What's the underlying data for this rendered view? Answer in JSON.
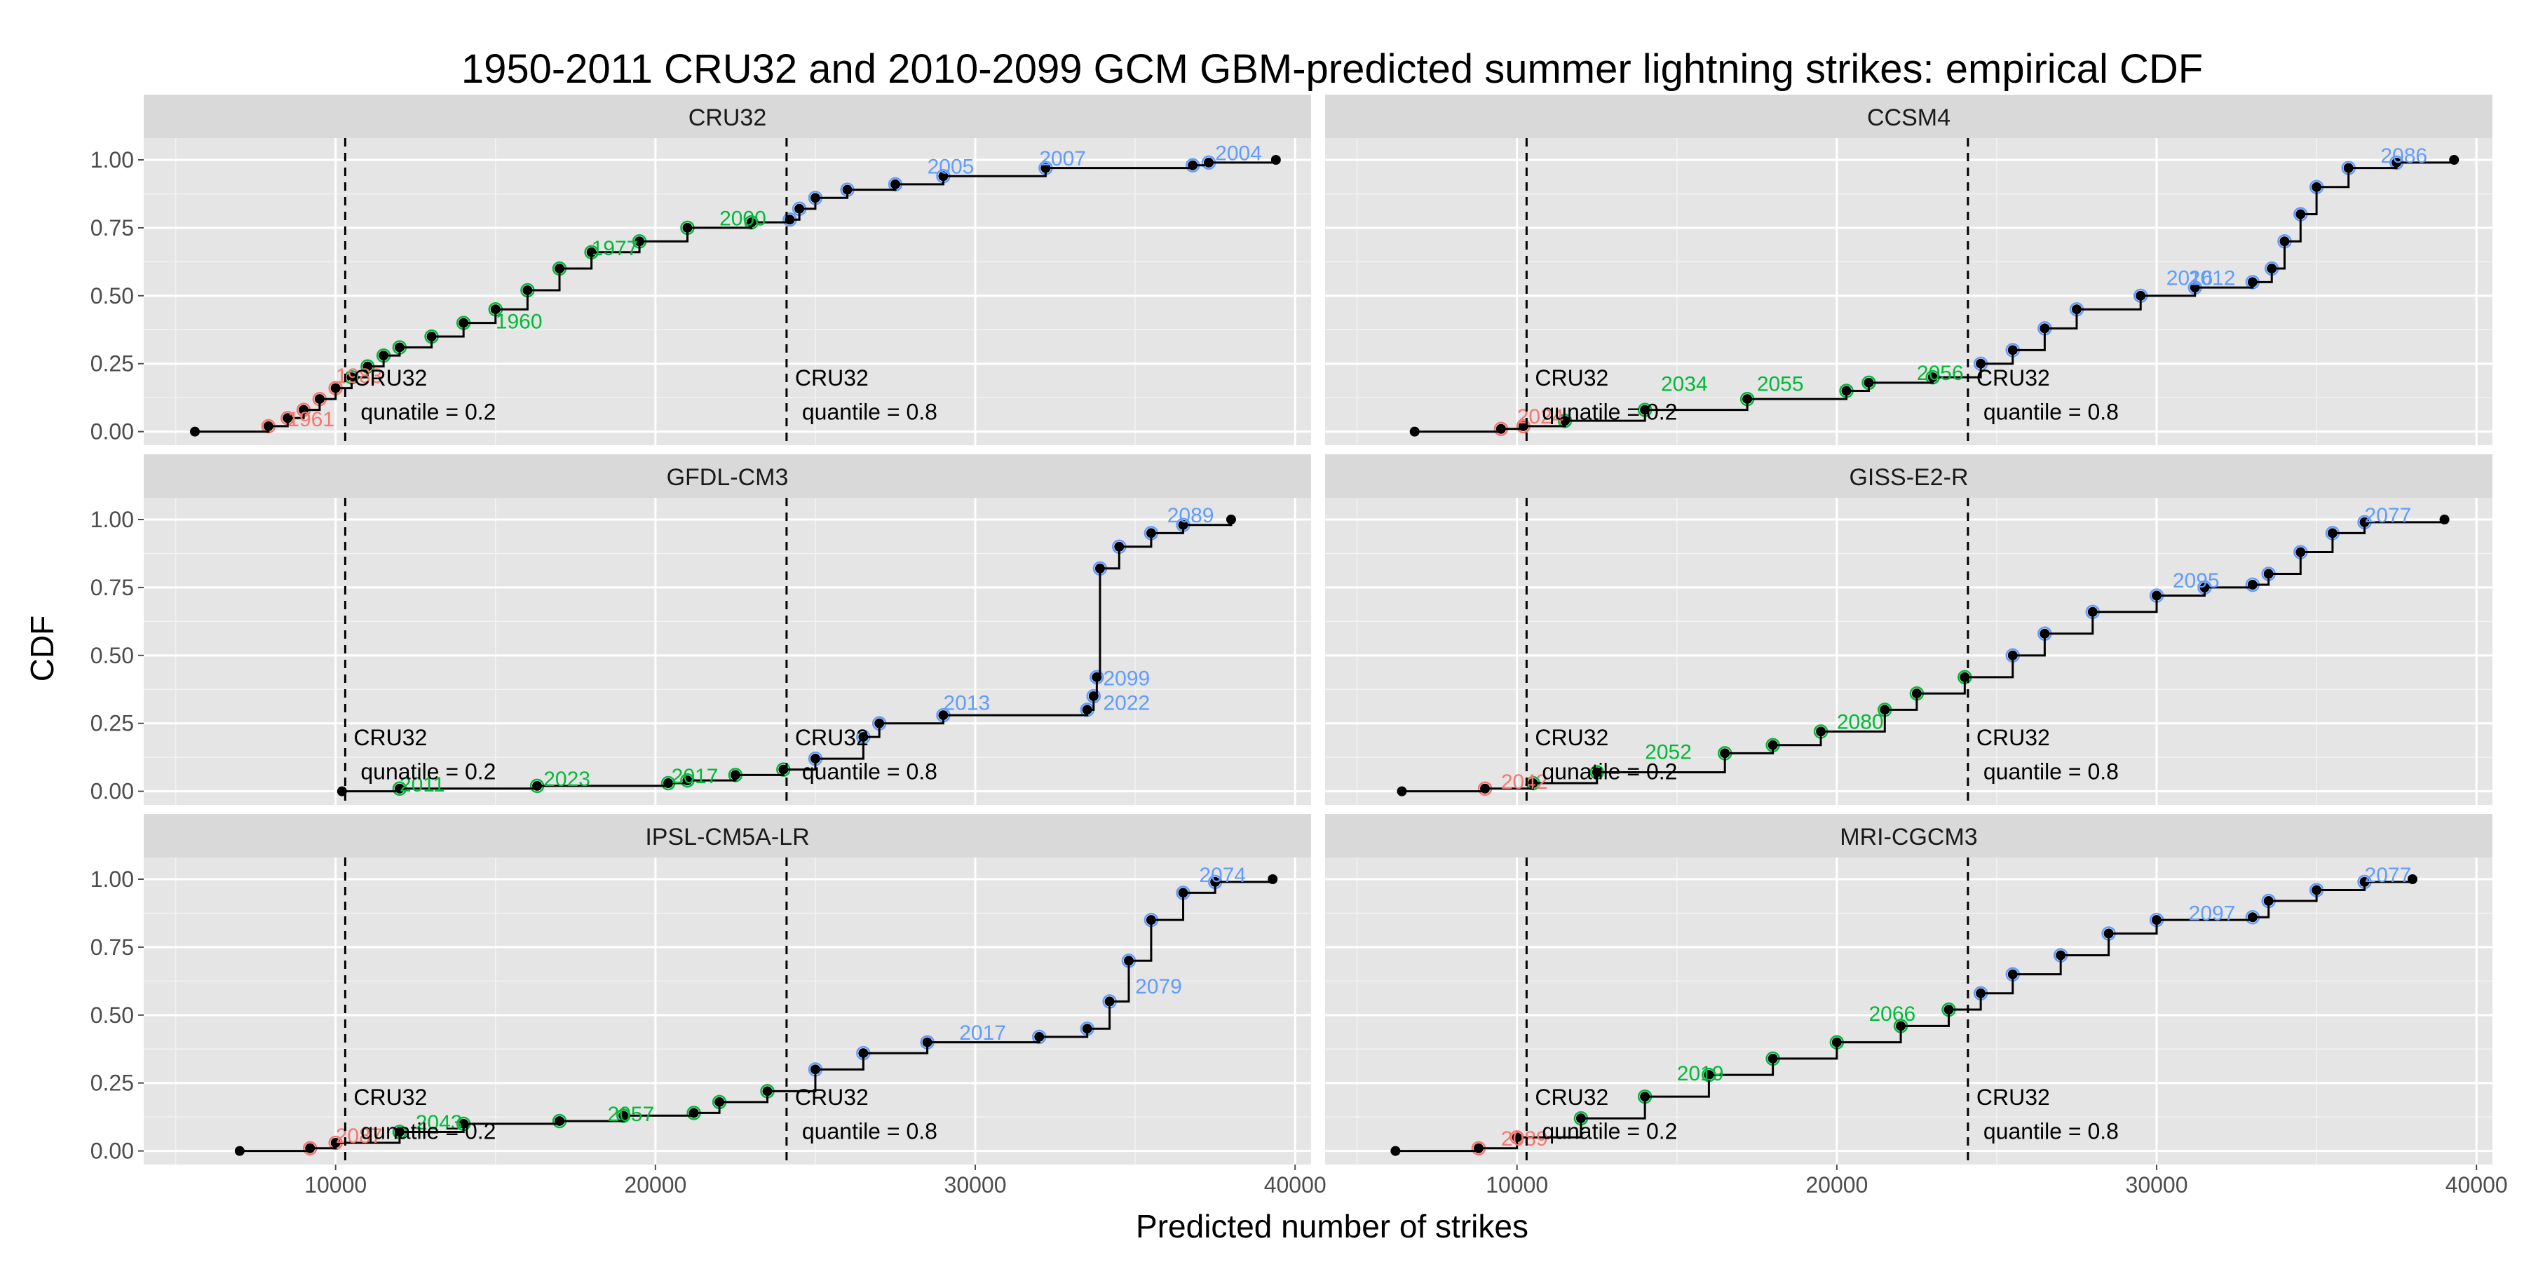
{
  "chart_data": {
    "type": "step",
    "title": "1950-2011 CRU32 and 2010-2099 GCM GBM-predicted summer lightning strikes: empirical CDF",
    "xlabel": "Predicted number of strikes",
    "ylabel": "CDF",
    "xlim": [
      4000,
      40500
    ],
    "ylim": [
      -0.05,
      1.08
    ],
    "x_ticks": [
      10000,
      20000,
      30000,
      40000
    ],
    "x_tick_labels": [
      "10000",
      "20000",
      "30000",
      "40000"
    ],
    "y_ticks": [
      0,
      0.25,
      0.5,
      0.75,
      1
    ],
    "y_tick_labels": [
      "0.00",
      "0.25",
      "0.50",
      "0.75",
      "1.00"
    ],
    "reference_lines": [
      {
        "x": 10300,
        "text1": "CRU32",
        "text2": "qunatile = 0.2"
      },
      {
        "x": 24100,
        "text1": "CRU32",
        "text2": "quantile = 0.8"
      }
    ],
    "group_colors": {
      "low": "#F8766D",
      "mid": "#00BA38",
      "high": "#619CFF"
    },
    "panels": [
      {
        "name": "CRU32",
        "points": [
          [
            5600,
            0
          ],
          [
            7900,
            0.02
          ],
          [
            8500,
            0.05
          ],
          [
            9000,
            0.08
          ],
          [
            9500,
            0.12
          ],
          [
            10000,
            0.16
          ],
          [
            10500,
            0.2
          ],
          [
            11000,
            0.24
          ],
          [
            11500,
            0.28
          ],
          [
            12000,
            0.31
          ],
          [
            13000,
            0.35
          ],
          [
            14000,
            0.4
          ],
          [
            15000,
            0.45
          ],
          [
            16000,
            0.52
          ],
          [
            17000,
            0.6
          ],
          [
            18000,
            0.66
          ],
          [
            19500,
            0.7
          ],
          [
            21000,
            0.75
          ],
          [
            23000,
            0.77
          ],
          [
            24200,
            0.78
          ],
          [
            24500,
            0.82
          ],
          [
            25000,
            0.86
          ],
          [
            26000,
            0.89
          ],
          [
            27500,
            0.91
          ],
          [
            29000,
            0.94
          ],
          [
            32200,
            0.97
          ],
          [
            36800,
            0.98
          ],
          [
            37300,
            0.99
          ],
          [
            39400,
            1.0
          ]
        ],
        "labels": [
          {
            "x": 8500,
            "y": 0.04,
            "text": "1961",
            "g": "low"
          },
          {
            "x": 10000,
            "y": 0.2,
            "text": "1983",
            "g": "low"
          },
          {
            "x": 15000,
            "y": 0.4,
            "text": "1960",
            "g": "mid"
          },
          {
            "x": 18000,
            "y": 0.67,
            "text": "1977",
            "g": "mid"
          },
          {
            "x": 22000,
            "y": 0.78,
            "text": "2000",
            "g": "mid"
          },
          {
            "x": 28500,
            "y": 0.97,
            "text": "2005",
            "g": "high"
          },
          {
            "x": 32000,
            "y": 1.0,
            "text": "2007",
            "g": "high"
          },
          {
            "x": 37500,
            "y": 1.02,
            "text": "2004",
            "g": "high"
          }
        ]
      },
      {
        "name": "CCSM4",
        "points": [
          [
            6800,
            0
          ],
          [
            9500,
            0.01
          ],
          [
            10200,
            0.02
          ],
          [
            11500,
            0.04
          ],
          [
            14000,
            0.08
          ],
          [
            17200,
            0.12
          ],
          [
            20300,
            0.15
          ],
          [
            21000,
            0.18
          ],
          [
            23000,
            0.2
          ],
          [
            24500,
            0.25
          ],
          [
            25500,
            0.3
          ],
          [
            26500,
            0.38
          ],
          [
            27500,
            0.45
          ],
          [
            29500,
            0.5
          ],
          [
            31200,
            0.53
          ],
          [
            33000,
            0.55
          ],
          [
            33600,
            0.6
          ],
          [
            34000,
            0.7
          ],
          [
            34500,
            0.8
          ],
          [
            35000,
            0.9
          ],
          [
            36000,
            0.97
          ],
          [
            37500,
            0.99
          ],
          [
            39300,
            1.0
          ]
        ],
        "labels": [
          {
            "x": 10000,
            "y": 0.05,
            "text": "2024",
            "g": "low"
          },
          {
            "x": 14500,
            "y": 0.17,
            "text": "2034",
            "g": "mid"
          },
          {
            "x": 17500,
            "y": 0.17,
            "text": "2055",
            "g": "mid"
          },
          {
            "x": 22500,
            "y": 0.21,
            "text": "2056",
            "g": "mid"
          },
          {
            "x": 30300,
            "y": 0.56,
            "text": "2016",
            "g": "high"
          },
          {
            "x": 31000,
            "y": 0.56,
            "text": "2012",
            "g": "high"
          },
          {
            "x": 37000,
            "y": 1.01,
            "text": "2086",
            "g": "high"
          }
        ]
      },
      {
        "name": "GFDL-CM3",
        "points": [
          [
            10200,
            0
          ],
          [
            12000,
            0.01
          ],
          [
            16300,
            0.02
          ],
          [
            20400,
            0.03
          ],
          [
            21000,
            0.04
          ],
          [
            22500,
            0.06
          ],
          [
            24000,
            0.08
          ],
          [
            25000,
            0.12
          ],
          [
            26500,
            0.2
          ],
          [
            27000,
            0.25
          ],
          [
            29000,
            0.28
          ],
          [
            33500,
            0.3
          ],
          [
            33700,
            0.35
          ],
          [
            33800,
            0.42
          ],
          [
            33900,
            0.82
          ],
          [
            34500,
            0.9
          ],
          [
            35500,
            0.95
          ],
          [
            36500,
            0.98
          ],
          [
            38000,
            1.0
          ]
        ],
        "labels": [
          {
            "x": 12000,
            "y": 0.02,
            "text": "2011",
            "g": "mid"
          },
          {
            "x": 16500,
            "y": 0.04,
            "text": "2023",
            "g": "mid"
          },
          {
            "x": 20500,
            "y": 0.05,
            "text": "2017",
            "g": "mid"
          },
          {
            "x": 29000,
            "y": 0.32,
            "text": "2013",
            "g": "high"
          },
          {
            "x": 34000,
            "y": 0.41,
            "text": "2099",
            "g": "high"
          },
          {
            "x": 34000,
            "y": 0.32,
            "text": "2022",
            "g": "high"
          },
          {
            "x": 36000,
            "y": 1.01,
            "text": "2089",
            "g": "high"
          }
        ]
      },
      {
        "name": "GISS-E2-R",
        "points": [
          [
            6400,
            0
          ],
          [
            9000,
            0.01
          ],
          [
            10500,
            0.03
          ],
          [
            12500,
            0.07
          ],
          [
            16500,
            0.14
          ],
          [
            18000,
            0.17
          ],
          [
            19500,
            0.22
          ],
          [
            21500,
            0.3
          ],
          [
            22500,
            0.36
          ],
          [
            24000,
            0.42
          ],
          [
            25500,
            0.5
          ],
          [
            26500,
            0.58
          ],
          [
            28000,
            0.66
          ],
          [
            30000,
            0.72
          ],
          [
            31500,
            0.75
          ],
          [
            33000,
            0.76
          ],
          [
            33500,
            0.8
          ],
          [
            34500,
            0.88
          ],
          [
            35500,
            0.95
          ],
          [
            36500,
            0.99
          ],
          [
            39000,
            1.0
          ]
        ],
        "labels": [
          {
            "x": 9500,
            "y": 0.03,
            "text": "2042",
            "g": "low"
          },
          {
            "x": 14000,
            "y": 0.14,
            "text": "2052",
            "g": "mid"
          },
          {
            "x": 20000,
            "y": 0.25,
            "text": "2080",
            "g": "mid"
          },
          {
            "x": 30500,
            "y": 0.77,
            "text": "2095",
            "g": "high"
          },
          {
            "x": 36500,
            "y": 1.01,
            "text": "2077",
            "g": "high"
          }
        ]
      },
      {
        "name": "IPSL-CM5A-LR",
        "points": [
          [
            7000,
            0
          ],
          [
            9200,
            0.01
          ],
          [
            10000,
            0.03
          ],
          [
            12000,
            0.07
          ],
          [
            14000,
            0.1
          ],
          [
            17000,
            0.11
          ],
          [
            19000,
            0.13
          ],
          [
            21200,
            0.14
          ],
          [
            22000,
            0.18
          ],
          [
            23500,
            0.22
          ],
          [
            25000,
            0.3
          ],
          [
            26500,
            0.36
          ],
          [
            28500,
            0.4
          ],
          [
            32000,
            0.42
          ],
          [
            33500,
            0.45
          ],
          [
            34200,
            0.55
          ],
          [
            34800,
            0.7
          ],
          [
            35500,
            0.85
          ],
          [
            36500,
            0.95
          ],
          [
            37500,
            0.99
          ],
          [
            39300,
            1.0
          ]
        ],
        "labels": [
          {
            "x": 10000,
            "y": 0.05,
            "text": "2087",
            "g": "low"
          },
          {
            "x": 12500,
            "y": 0.1,
            "text": "2043",
            "g": "mid"
          },
          {
            "x": 18500,
            "y": 0.13,
            "text": "2057",
            "g": "mid"
          },
          {
            "x": 29500,
            "y": 0.43,
            "text": "2017",
            "g": "high"
          },
          {
            "x": 35000,
            "y": 0.6,
            "text": "2079",
            "g": "high"
          },
          {
            "x": 37000,
            "y": 1.01,
            "text": "2074",
            "g": "high"
          }
        ]
      },
      {
        "name": "MRI-CGCM3",
        "points": [
          [
            6200,
            0
          ],
          [
            8800,
            0.01
          ],
          [
            10000,
            0.05
          ],
          [
            12000,
            0.12
          ],
          [
            14000,
            0.2
          ],
          [
            16000,
            0.28
          ],
          [
            18000,
            0.34
          ],
          [
            20000,
            0.4
          ],
          [
            22000,
            0.46
          ],
          [
            23500,
            0.52
          ],
          [
            24500,
            0.58
          ],
          [
            25500,
            0.65
          ],
          [
            27000,
            0.72
          ],
          [
            28500,
            0.8
          ],
          [
            30000,
            0.85
          ],
          [
            33000,
            0.86
          ],
          [
            33500,
            0.92
          ],
          [
            35000,
            0.96
          ],
          [
            36500,
            0.99
          ],
          [
            38000,
            1.0
          ]
        ],
        "labels": [
          {
            "x": 9500,
            "y": 0.04,
            "text": "2089",
            "g": "low"
          },
          {
            "x": 15000,
            "y": 0.28,
            "text": "2019",
            "g": "mid"
          },
          {
            "x": 21000,
            "y": 0.5,
            "text": "2066",
            "g": "mid"
          },
          {
            "x": 31000,
            "y": 0.87,
            "text": "2097",
            "g": "high"
          },
          {
            "x": 36500,
            "y": 1.01,
            "text": "2077",
            "g": "high"
          }
        ]
      }
    ]
  }
}
